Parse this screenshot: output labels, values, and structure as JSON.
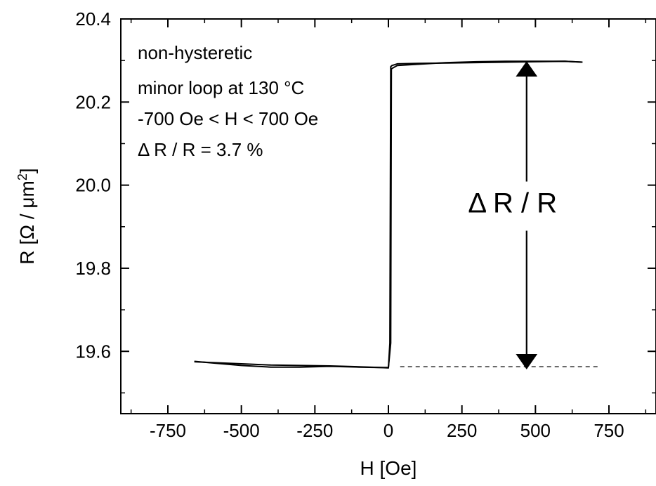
{
  "chart_data": {
    "type": "line",
    "title": "",
    "xlabel": "H [Oe]",
    "ylabel": "R [Ω / μm²]",
    "ylabel_parts": {
      "prefix": "R [Ω / μm",
      "sup": "2",
      "suffix": "]"
    },
    "xlim": [
      -910,
      910
    ],
    "ylim": [
      19.45,
      20.4
    ],
    "x_ticks": [
      -750,
      -500,
      -250,
      0,
      250,
      500,
      750
    ],
    "x_tick_labels": [
      "-750",
      "-500",
      "-250",
      "0",
      "250",
      "500",
      "750"
    ],
    "y_ticks": [
      19.6,
      19.8,
      20.0,
      20.2,
      20.4
    ],
    "y_tick_labels": [
      "19.6",
      "19.8",
      "20.0",
      "20.2",
      "20.4"
    ],
    "grid": false,
    "series": [
      {
        "values_x": [
          -660,
          -600,
          -500,
          -400,
          -300,
          -200,
          -100,
          -30,
          0,
          5,
          8,
          12,
          30,
          100,
          200,
          300,
          400,
          500,
          600,
          660
        ],
        "values_y": [
          19.575,
          19.573,
          19.57,
          19.567,
          19.566,
          19.565,
          19.563,
          19.561,
          19.56,
          19.62,
          20.285,
          20.288,
          20.292,
          20.293,
          20.294,
          20.295,
          20.296,
          20.297,
          20.298,
          20.296
        ],
        "color": "#000000"
      },
      {
        "values_x": [
          -660,
          -600,
          -500,
          -400,
          -300,
          -200,
          -100,
          -30,
          0,
          8,
          10,
          30,
          100,
          200,
          300,
          400,
          500,
          600,
          660
        ],
        "values_y": [
          19.576,
          19.572,
          19.566,
          19.562,
          19.562,
          19.564,
          19.562,
          19.561,
          19.561,
          19.62,
          20.28,
          20.288,
          20.291,
          20.295,
          20.297,
          20.298,
          20.298,
          20.298,
          20.296
        ],
        "color": "#000000"
      }
    ],
    "baseline": {
      "y": 19.563,
      "x_from": 40,
      "x_to": 720,
      "style": "dashed"
    },
    "arrow": {
      "x": 470,
      "y_from": 19.565,
      "y_to": 20.29,
      "label": "Δ R / R"
    },
    "annotations": [
      "non-hysteretic",
      "minor loop at 130 °C",
      "-700 Oe < H < 700 Oe",
      "Δ R / R =  3.7 %"
    ]
  }
}
